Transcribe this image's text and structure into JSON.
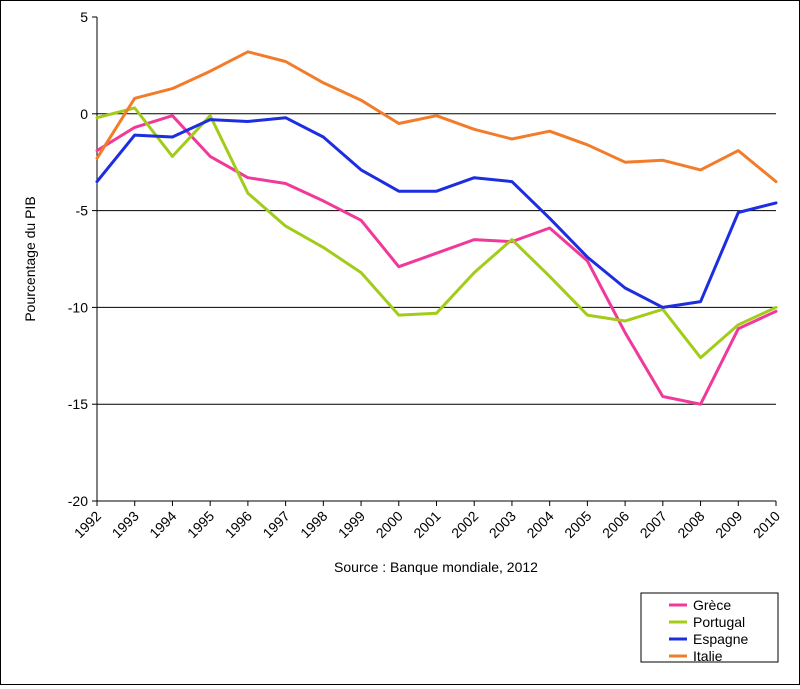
{
  "chart_data": {
    "type": "line",
    "title": "",
    "ylabel": "Pourcentage du PIB",
    "xlabel": "Source : Banque mondiale, 2012",
    "ylim": [
      -20,
      5
    ],
    "yticks": [
      5,
      0,
      -5,
      -10,
      -15,
      -20
    ],
    "grid": "horizontal-major",
    "legend_position": "bottom-right",
    "categories": [
      "1992",
      "1993",
      "1994",
      "1995",
      "1996",
      "1997",
      "1998",
      "1999",
      "2000",
      "2001",
      "2002",
      "2003",
      "2004",
      "2005",
      "2006",
      "2007",
      "2008",
      "2009",
      "2010"
    ],
    "series": [
      {
        "name": "Grèce",
        "color": "#f0399a",
        "values": [
          -1.9,
          -0.7,
          -0.1,
          -2.2,
          -3.3,
          -3.6,
          -4.5,
          -5.5,
          -7.9,
          -7.2,
          -6.5,
          -6.6,
          -5.9,
          -7.6,
          -11.3,
          -14.6,
          -15.0,
          -11.1,
          -10.2
        ]
      },
      {
        "name": "Portugal",
        "color": "#a3cc1a",
        "values": [
          -0.2,
          0.3,
          -2.2,
          -0.1,
          -4.1,
          -5.8,
          -6.9,
          -8.2,
          -10.4,
          -10.3,
          -8.2,
          -6.5,
          -8.4,
          -10.4,
          -10.7,
          -10.1,
          -12.6,
          -10.9,
          -10.0
        ]
      },
      {
        "name": "Espagne",
        "color": "#1c2ee0",
        "values": [
          -3.5,
          -1.1,
          -1.2,
          -0.3,
          -0.4,
          -0.2,
          -1.2,
          -2.9,
          -4.0,
          -4.0,
          -3.3,
          -3.5,
          -5.4,
          -7.4,
          -9.0,
          -10.0,
          -9.7,
          -5.1,
          -4.6
        ]
      },
      {
        "name": "Italie",
        "color": "#f27c2a",
        "values": [
          -2.3,
          0.8,
          1.3,
          2.2,
          3.2,
          2.7,
          1.6,
          0.7,
          -0.5,
          -0.1,
          -0.8,
          -1.3,
          -0.9,
          -1.6,
          -2.5,
          -2.4,
          -2.9,
          -1.9,
          -3.5
        ]
      }
    ]
  }
}
